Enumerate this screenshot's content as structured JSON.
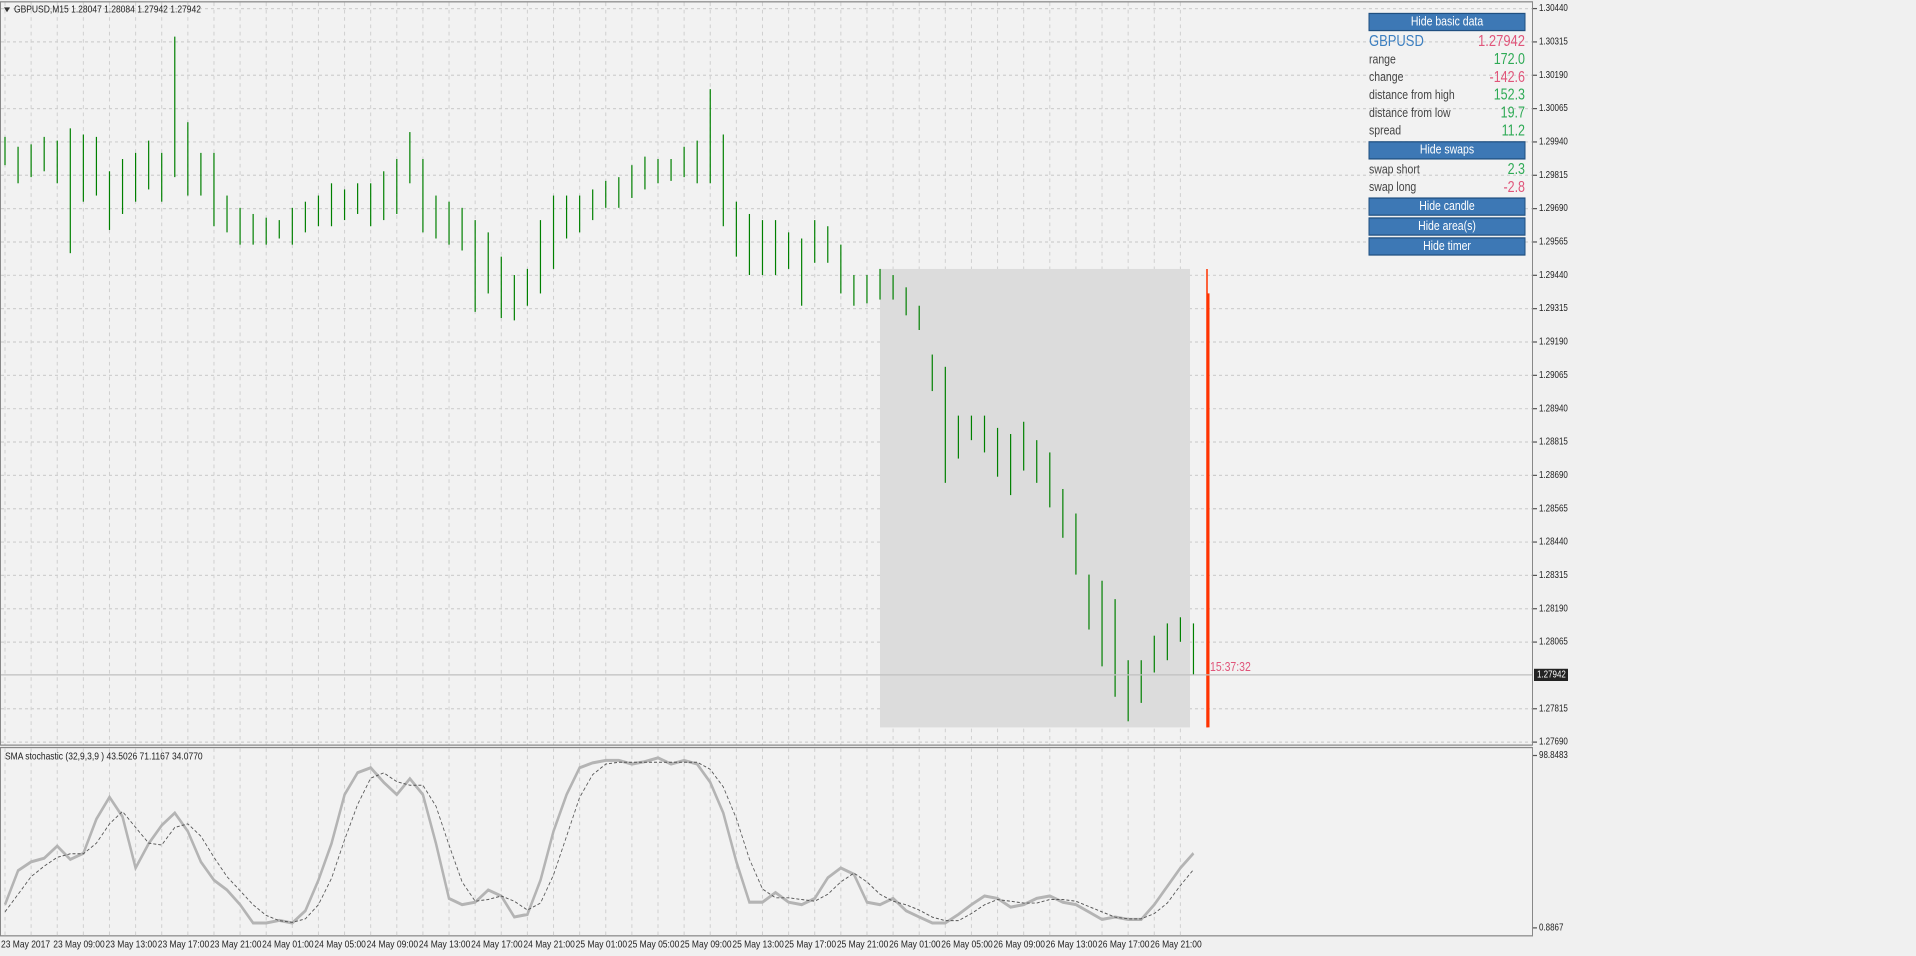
{
  "chart_data": [
    {
      "type": "hlc_bars",
      "title": "GBPUSD,M15  1.28047 1.28084 1.27942 1.27942",
      "color": "#008000",
      "categories": [
        "23 May 2017",
        null,
        null,
        null,
        "23 May 09:00",
        null,
        null,
        null,
        "23 May 13:00",
        null,
        null,
        null,
        "23 May 17:00",
        null,
        null,
        null,
        "23 May 21:00",
        null,
        null,
        null,
        "24 May 01:00",
        null,
        null,
        null,
        "24 May 05:00",
        null,
        null,
        null,
        "24 May 09:00",
        null,
        null,
        null,
        "24 May 13:00",
        null,
        null,
        null,
        "24 May 17:00",
        null,
        null,
        null,
        "24 May 21:00",
        null,
        null,
        null,
        "25 May 01:00",
        null,
        null,
        null,
        "25 May 05:00",
        null,
        null,
        null,
        "25 May 09:00",
        null,
        null,
        null,
        "25 May 13:00",
        null,
        null,
        null,
        "25 May 17:00",
        null,
        null,
        null,
        "25 May 21:00",
        null,
        null,
        null,
        "26 May 01:00",
        null,
        null,
        null,
        "26 May 05:00",
        null,
        null,
        null,
        "26 May 09:00",
        null,
        null,
        null,
        "26 May 13:00",
        null,
        null,
        null,
        "26 May 17:00",
        null,
        null,
        null,
        "26 May 21:00",
        null,
        null,
        null
      ],
      "high": [
        1.29959,
        1.29922,
        1.29931,
        1.29959,
        1.29945,
        1.29991,
        1.29968,
        1.29959,
        1.2983,
        1.29876,
        1.29899,
        1.29945,
        1.29899,
        1.30335,
        1.30014,
        1.29899,
        1.29899,
        1.29739,
        1.29693,
        1.2967,
        1.29656,
        1.29647,
        1.29693,
        1.29716,
        1.29739,
        1.29785,
        1.29762,
        1.29785,
        1.29785,
        1.2983,
        1.29876,
        1.29977,
        1.29876,
        1.29739,
        1.29716,
        1.29693,
        1.29647,
        1.29601,
        1.2951,
        1.29441,
        1.29464,
        1.29647,
        1.29739,
        1.29739,
        1.29739,
        1.29762,
        1.29794,
        1.29808,
        1.29853,
        1.29885,
        1.29876,
        1.29876,
        1.29922,
        1.29945,
        1.30138,
        1.29968,
        1.29716,
        1.2967,
        1.29647,
        1.29647,
        1.29601,
        1.29578,
        1.29647,
        1.29624,
        1.29555,
        1.29441,
        1.29441,
        1.29464,
        1.29441,
        1.29395,
        1.29326,
        1.29143,
        1.29097,
        1.28914,
        1.28914,
        1.28914,
        1.28868,
        1.28845,
        1.28891,
        1.28822,
        1.28776,
        1.28639,
        1.28547,
        1.28318,
        1.28295,
        1.28226,
        1.27997,
        1.27997,
        1.28089,
        1.28135,
        1.28158,
        1.28135
      ],
      "low": [
        1.29853,
        1.29785,
        1.29808,
        1.2983,
        1.29785,
        1.29523,
        1.29716,
        1.29739,
        1.2961,
        1.2967,
        1.29716,
        1.29762,
        1.29716,
        1.29808,
        1.29739,
        1.29739,
        1.29624,
        1.29601,
        1.29555,
        1.29555,
        1.29555,
        1.29578,
        1.29555,
        1.29601,
        1.29624,
        1.29624,
        1.29647,
        1.2967,
        1.29624,
        1.29647,
        1.2967,
        1.29785,
        1.29601,
        1.29578,
        1.29555,
        1.29533,
        1.29303,
        1.29372,
        1.2928,
        1.29271,
        1.29326,
        1.29372,
        1.29464,
        1.29578,
        1.29601,
        1.29647,
        1.29693,
        1.29693,
        1.2973,
        1.29762,
        1.29785,
        1.29794,
        1.29808,
        1.29785,
        1.29785,
        1.29624,
        1.2951,
        1.29441,
        1.29441,
        1.29441,
        1.29464,
        1.29326,
        1.29487,
        1.29487,
        1.29372,
        1.29326,
        1.29335,
        1.29349,
        1.29349,
        1.2929,
        1.29235,
        1.29006,
        1.28662,
        1.28753,
        1.28822,
        1.28776,
        1.28685,
        1.28616,
        1.28708,
        1.28662,
        1.2857,
        1.28456,
        1.28318,
        1.28112,
        1.27974,
        1.2786,
        1.27768,
        1.27837,
        1.27951,
        1.27997,
        1.28066,
        1.27942
      ],
      "ylim": [
        1.27681,
        1.30463
      ],
      "yticks": [
        {
          "value": 1.3044,
          "label": "1.30440"
        },
        {
          "value": 1.30315,
          "label": "1.30315"
        },
        {
          "value": 1.3019,
          "label": "1.30190"
        },
        {
          "value": 1.30065,
          "label": "1.30065"
        },
        {
          "value": 1.2994,
          "label": "1.29940"
        },
        {
          "value": 1.29815,
          "label": "1.29815"
        },
        {
          "value": 1.2969,
          "label": "1.29690"
        },
        {
          "value": 1.29565,
          "label": "1.29565"
        },
        {
          "value": 1.2944,
          "label": "1.29440"
        },
        {
          "value": 1.29315,
          "label": "1.29315"
        },
        {
          "value": 1.2919,
          "label": "1.29190"
        },
        {
          "value": 1.29065,
          "label": "1.29065"
        },
        {
          "value": 1.2894,
          "label": "1.28940"
        },
        {
          "value": 1.28815,
          "label": "1.28815"
        },
        {
          "value": 1.2869,
          "label": "1.28690"
        },
        {
          "value": 1.28565,
          "label": "1.28565"
        },
        {
          "value": 1.2844,
          "label": "1.28440"
        },
        {
          "value": 1.28315,
          "label": "1.28315"
        },
        {
          "value": 1.2819,
          "label": "1.28190"
        },
        {
          "value": 1.28065,
          "label": "1.28065"
        },
        {
          "value": 1.27815,
          "label": "1.27815"
        },
        {
          "value": 1.2769,
          "label": "1.27690"
        }
      ],
      "last_price": {
        "value": 1.27942,
        "label": "1.27942"
      },
      "timer": "15:37:32",
      "grid": true
    },
    {
      "type": "line",
      "title": "SMA stochastic (32,9,3,9 ) 43.5026 71.1167 34.0770",
      "series": [
        {
          "color": "#b4b4b4",
          "dash": false,
          "values": [
            14.1,
            33.5,
            38.4,
            40.5,
            47.4,
            39.8,
            43.3,
            62.7,
            75.2,
            64.1,
            34.9,
            48.8,
            59.2,
            66.2,
            55.8,
            38.4,
            28.0,
            22.4,
            14.1,
            3.7,
            3.7,
            5.1,
            3.7,
            10.6,
            28.0,
            48.8,
            76.6,
            89.1,
            91.9,
            83.6,
            76.6,
            85.7,
            76.6,
            48.8,
            17.6,
            14.1,
            15.5,
            22.4,
            19.0,
            7.1,
            8.5,
            28.0,
            55.8,
            76.6,
            91.9,
            94.7,
            96.1,
            96.1,
            94.0,
            95.4,
            97.5,
            94.0,
            96.1,
            94.0,
            83.6,
            66.2,
            38.4,
            15.5,
            15.5,
            21.0,
            15.5,
            14.1,
            17.6,
            29.4,
            34.9,
            31.4,
            15.5,
            14.1,
            17.6,
            10.6,
            7.1,
            3.7,
            3.7,
            8.5,
            14.1,
            19.0,
            17.6,
            12.7,
            14.1,
            17.6,
            19.0,
            15.5,
            14.1,
            9.9,
            5.7,
            7.1,
            5.7,
            5.7,
            14.1,
            24.5,
            34.9,
            43.3
          ]
        },
        {
          "color": "#555555",
          "dash": true,
          "values": [
            10,
            20,
            30,
            36,
            41,
            43,
            43,
            49,
            60,
            67,
            58,
            49,
            48,
            58,
            60,
            53,
            41,
            30,
            22,
            14,
            8,
            5,
            4,
            6,
            14,
            29,
            51,
            71,
            86,
            89,
            84,
            82,
            82,
            70,
            48,
            27,
            16,
            17,
            19,
            16,
            11,
            15,
            31,
            53,
            75,
            88,
            94,
            95,
            95,
            95,
            95,
            95,
            95,
            95,
            91,
            81,
            63,
            40,
            23,
            18,
            18,
            17,
            16,
            20,
            27,
            32,
            27,
            20,
            16,
            14,
            11,
            7,
            5,
            5,
            9,
            14,
            17,
            16,
            15,
            15,
            17,
            17,
            16,
            13,
            10,
            7,
            6,
            6,
            9,
            15,
            25,
            34
          ]
        }
      ],
      "ylim": [
        0.8867,
        98.8483
      ],
      "yticks": [
        98.8483,
        0.8867
      ]
    }
  ],
  "panel": {
    "basic_button": "Hide basic data",
    "symbol": {
      "label": "GBPUSD",
      "value": "1.27942",
      "label_color": "#3c7fc0",
      "value_color": "#e0557a"
    },
    "rows": [
      {
        "label": "range",
        "value": "172.0",
        "color": "#2eaa55"
      },
      {
        "label": "change",
        "value": "-142.6",
        "color": "#e0557a"
      },
      {
        "label": "distance from high",
        "value": "152.3",
        "color": "#2eaa55"
      },
      {
        "label": "distance from low",
        "value": "19.7",
        "color": "#2eaa55"
      },
      {
        "label": "spread",
        "value": "11.2",
        "color": "#2eaa55"
      }
    ],
    "swaps_button": "Hide swaps",
    "swaps": [
      {
        "label": "swap short",
        "value": "2.3",
        "color": "#2eaa55"
      },
      {
        "label": "swap long",
        "value": "-2.8",
        "color": "#e0557a"
      }
    ],
    "buttons": [
      "Hide candle",
      "Hide area(s)",
      "Hide timer"
    ]
  }
}
